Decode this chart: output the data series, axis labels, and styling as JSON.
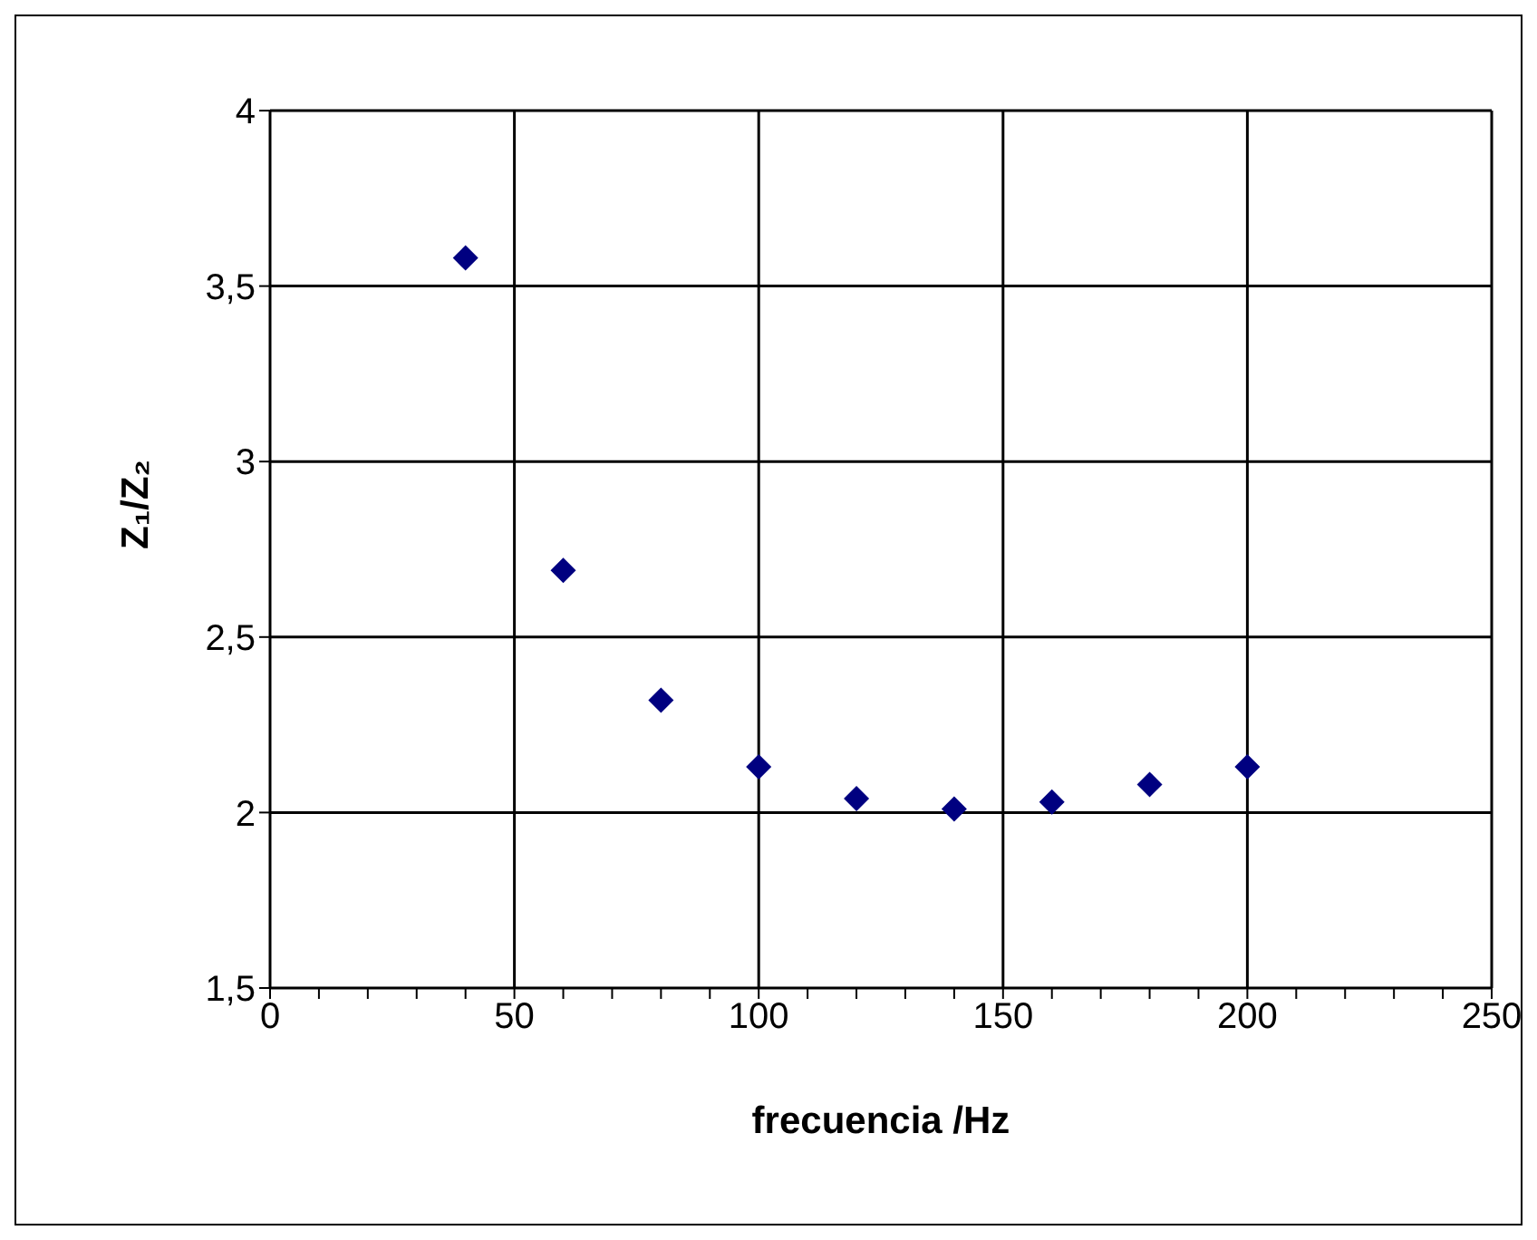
{
  "chart_data": {
    "type": "scatter",
    "xlabel": "frecuencia /Hz",
    "ylabel": "Z₁/Z₂",
    "x": [
      40,
      60,
      80,
      100,
      120,
      140,
      160,
      180,
      200
    ],
    "series": [
      {
        "color": "#000080",
        "values": [
          3.58,
          2.69,
          2.32,
          2.13,
          2.04,
          2.01,
          2.03,
          2.08,
          2.13
        ]
      }
    ],
    "xlim": [
      0,
      250
    ],
    "xticks": [
      0,
      {
        "value": 10,
        "label": null
      },
      {
        "value": 20,
        "label": null
      },
      {
        "value": 30,
        "label": null
      },
      {
        "value": 40,
        "label": null
      },
      50,
      {
        "value": 60,
        "label": null
      },
      {
        "value": 70,
        "label": null
      },
      {
        "value": 80,
        "label": null
      },
      {
        "value": 90,
        "label": null
      },
      100,
      {
        "value": 110,
        "label": null
      },
      {
        "value": 120,
        "label": null
      },
      {
        "value": 130,
        "label": null
      },
      {
        "value": 140,
        "label": null
      },
      150,
      {
        "value": 160,
        "label": null
      },
      {
        "value": 170,
        "label": null
      },
      {
        "value": 180,
        "label": null
      },
      {
        "value": 190,
        "label": null
      },
      200,
      {
        "value": 210,
        "label": null
      },
      {
        "value": 220,
        "label": null
      },
      {
        "value": 230,
        "label": null
      },
      {
        "value": 240,
        "label": null
      },
      250
    ],
    "ylim": [
      1.5,
      4
    ],
    "yticks": [
      {
        "value": 1.5,
        "label": "1,5"
      },
      2,
      {
        "value": 2.5,
        "label": "2,5"
      },
      3,
      {
        "value": 3.5,
        "label": "3,5"
      },
      4
    ],
    "grid": true,
    "legend": false,
    "marker": "diamond"
  }
}
